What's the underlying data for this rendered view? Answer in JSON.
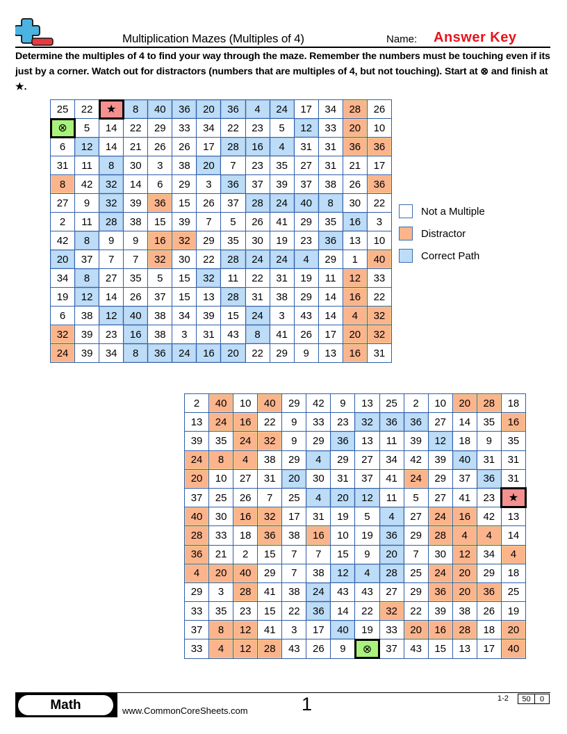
{
  "header": {
    "logo_icon": "plus-minus-logo-icon",
    "title": "Multiplication Mazes (Multiples of 4)",
    "name_label": "Name:",
    "name_value": "Answer Key"
  },
  "instructions": "Determine the multiples of 4 to find your way through the maze. Remember the numbers must be touching even if its just by a corner. Watch out for distractors (numbers that are multiples of 4, but not touching). Start at ⊗ and finish at ★.",
  "symbols": {
    "start": "⊗",
    "finish": "★"
  },
  "cell_codes": {
    "n": "Not a Multiple",
    "d": "Distractor",
    "p": "Correct Path",
    "s": "Start",
    "f": "Finish"
  },
  "colors": {
    "not_multiple": "#ffffff",
    "distractor": "#fbb48c",
    "correct_path": "#bcdcf7",
    "start": "#a9f27c",
    "finish": "#f49090",
    "grid_border": "#2e5ea8",
    "answer_key": "#e8121b"
  },
  "legend": [
    {
      "label": "Not a Multiple",
      "code": "n"
    },
    {
      "label": "Distractor",
      "code": "d"
    },
    {
      "label": "Correct Path",
      "code": "p"
    }
  ],
  "maze1": {
    "values": [
      [
        "25",
        "22",
        "★",
        "8",
        "40",
        "36",
        "20",
        "36",
        "4",
        "24",
        "17",
        "34",
        "28",
        "26"
      ],
      [
        "⊗",
        "5",
        "14",
        "22",
        "29",
        "33",
        "34",
        "22",
        "23",
        "5",
        "12",
        "33",
        "20",
        "10"
      ],
      [
        "6",
        "12",
        "14",
        "21",
        "26",
        "26",
        "17",
        "28",
        "16",
        "4",
        "31",
        "31",
        "36",
        "36"
      ],
      [
        "31",
        "11",
        "8",
        "30",
        "3",
        "38",
        "20",
        "7",
        "23",
        "35",
        "27",
        "31",
        "21",
        "17"
      ],
      [
        "8",
        "42",
        "32",
        "14",
        "6",
        "29",
        "3",
        "36",
        "37",
        "39",
        "37",
        "38",
        "26",
        "36"
      ],
      [
        "27",
        "9",
        "32",
        "39",
        "36",
        "15",
        "26",
        "37",
        "28",
        "24",
        "40",
        "8",
        "30",
        "22"
      ],
      [
        "2",
        "11",
        "28",
        "38",
        "15",
        "39",
        "7",
        "5",
        "26",
        "41",
        "29",
        "35",
        "16",
        "3"
      ],
      [
        "42",
        "8",
        "9",
        "9",
        "16",
        "32",
        "29",
        "35",
        "30",
        "19",
        "23",
        "36",
        "13",
        "10"
      ],
      [
        "20",
        "37",
        "7",
        "7",
        "32",
        "30",
        "22",
        "28",
        "24",
        "24",
        "4",
        "29",
        "1",
        "40"
      ],
      [
        "34",
        "8",
        "27",
        "35",
        "5",
        "15",
        "32",
        "11",
        "22",
        "31",
        "19",
        "11",
        "12",
        "33"
      ],
      [
        "19",
        "12",
        "14",
        "26",
        "37",
        "15",
        "13",
        "28",
        "31",
        "38",
        "29",
        "14",
        "16",
        "22"
      ],
      [
        "6",
        "38",
        "12",
        "40",
        "38",
        "34",
        "39",
        "15",
        "24",
        "3",
        "43",
        "14",
        "4",
        "32"
      ],
      [
        "32",
        "39",
        "23",
        "16",
        "38",
        "3",
        "31",
        "43",
        "8",
        "41",
        "26",
        "17",
        "20",
        "32"
      ],
      [
        "24",
        "39",
        "34",
        "8",
        "36",
        "24",
        "16",
        "20",
        "22",
        "29",
        "9",
        "13",
        "16",
        "31"
      ]
    ],
    "types": [
      [
        "n",
        "n",
        "f",
        "p",
        "p",
        "p",
        "p",
        "p",
        "p",
        "p",
        "n",
        "n",
        "d",
        "n"
      ],
      [
        "s",
        "n",
        "n",
        "n",
        "n",
        "n",
        "n",
        "n",
        "n",
        "n",
        "p",
        "n",
        "d",
        "n"
      ],
      [
        "n",
        "p",
        "n",
        "n",
        "n",
        "n",
        "n",
        "p",
        "p",
        "p",
        "n",
        "n",
        "d",
        "d"
      ],
      [
        "n",
        "n",
        "p",
        "n",
        "n",
        "n",
        "p",
        "n",
        "n",
        "n",
        "n",
        "n",
        "n",
        "n"
      ],
      [
        "d",
        "n",
        "p",
        "n",
        "n",
        "n",
        "n",
        "p",
        "n",
        "n",
        "n",
        "n",
        "n",
        "d"
      ],
      [
        "n",
        "n",
        "p",
        "n",
        "d",
        "n",
        "n",
        "n",
        "p",
        "p",
        "p",
        "p",
        "n",
        "n"
      ],
      [
        "n",
        "n",
        "p",
        "n",
        "n",
        "n",
        "n",
        "n",
        "n",
        "n",
        "n",
        "n",
        "p",
        "n"
      ],
      [
        "n",
        "p",
        "n",
        "n",
        "d",
        "d",
        "n",
        "n",
        "n",
        "n",
        "n",
        "p",
        "n",
        "n"
      ],
      [
        "p",
        "n",
        "n",
        "n",
        "d",
        "n",
        "n",
        "p",
        "p",
        "p",
        "p",
        "n",
        "n",
        "d"
      ],
      [
        "n",
        "p",
        "n",
        "n",
        "n",
        "n",
        "p",
        "n",
        "n",
        "n",
        "n",
        "n",
        "d",
        "n"
      ],
      [
        "n",
        "p",
        "n",
        "n",
        "n",
        "n",
        "n",
        "p",
        "n",
        "n",
        "n",
        "n",
        "d",
        "n"
      ],
      [
        "n",
        "n",
        "p",
        "p",
        "n",
        "n",
        "n",
        "n",
        "p",
        "n",
        "n",
        "n",
        "d",
        "d"
      ],
      [
        "d",
        "n",
        "n",
        "p",
        "n",
        "n",
        "n",
        "n",
        "p",
        "n",
        "n",
        "n",
        "d",
        "d"
      ],
      [
        "d",
        "n",
        "n",
        "p",
        "p",
        "p",
        "p",
        "p",
        "n",
        "n",
        "n",
        "n",
        "d",
        "n"
      ]
    ]
  },
  "maze2": {
    "values": [
      [
        "2",
        "40",
        "10",
        "40",
        "29",
        "42",
        "9",
        "13",
        "25",
        "2",
        "10",
        "20",
        "28",
        "18"
      ],
      [
        "13",
        "24",
        "16",
        "22",
        "9",
        "33",
        "23",
        "32",
        "36",
        "36",
        "27",
        "14",
        "35",
        "16"
      ],
      [
        "39",
        "35",
        "24",
        "32",
        "9",
        "29",
        "36",
        "13",
        "11",
        "39",
        "12",
        "18",
        "9",
        "35"
      ],
      [
        "24",
        "8",
        "4",
        "38",
        "29",
        "4",
        "29",
        "27",
        "34",
        "42",
        "39",
        "40",
        "31",
        "31"
      ],
      [
        "20",
        "10",
        "27",
        "31",
        "20",
        "30",
        "31",
        "37",
        "41",
        "24",
        "29",
        "37",
        "36",
        "31"
      ],
      [
        "37",
        "25",
        "26",
        "7",
        "25",
        "4",
        "20",
        "12",
        "11",
        "5",
        "27",
        "41",
        "23",
        "★"
      ],
      [
        "40",
        "30",
        "16",
        "32",
        "17",
        "31",
        "19",
        "5",
        "4",
        "27",
        "24",
        "16",
        "42",
        "13"
      ],
      [
        "28",
        "33",
        "18",
        "36",
        "38",
        "16",
        "10",
        "19",
        "36",
        "29",
        "28",
        "4",
        "4",
        "14"
      ],
      [
        "36",
        "21",
        "2",
        "15",
        "7",
        "7",
        "15",
        "9",
        "20",
        "7",
        "30",
        "12",
        "34",
        "4"
      ],
      [
        "4",
        "20",
        "40",
        "29",
        "7",
        "38",
        "12",
        "4",
        "28",
        "25",
        "24",
        "20",
        "29",
        "18"
      ],
      [
        "29",
        "3",
        "28",
        "41",
        "38",
        "24",
        "43",
        "43",
        "27",
        "29",
        "36",
        "20",
        "36",
        "25"
      ],
      [
        "33",
        "35",
        "23",
        "15",
        "22",
        "36",
        "14",
        "22",
        "32",
        "22",
        "39",
        "38",
        "26",
        "19"
      ],
      [
        "37",
        "8",
        "12",
        "41",
        "3",
        "17",
        "40",
        "19",
        "33",
        "20",
        "16",
        "28",
        "18",
        "20"
      ],
      [
        "33",
        "4",
        "12",
        "28",
        "43",
        "26",
        "9",
        "⊗",
        "37",
        "43",
        "15",
        "13",
        "17",
        "40"
      ]
    ],
    "types": [
      [
        "n",
        "d",
        "n",
        "d",
        "n",
        "n",
        "n",
        "n",
        "n",
        "n",
        "n",
        "d",
        "d",
        "n"
      ],
      [
        "n",
        "d",
        "d",
        "n",
        "n",
        "n",
        "n",
        "p",
        "p",
        "p",
        "n",
        "n",
        "n",
        "d"
      ],
      [
        "n",
        "n",
        "d",
        "d",
        "n",
        "n",
        "p",
        "n",
        "n",
        "n",
        "p",
        "n",
        "n",
        "n"
      ],
      [
        "d",
        "d",
        "d",
        "n",
        "n",
        "p",
        "n",
        "n",
        "n",
        "n",
        "n",
        "p",
        "n",
        "n"
      ],
      [
        "d",
        "n",
        "n",
        "n",
        "p",
        "n",
        "n",
        "n",
        "n",
        "d",
        "n",
        "n",
        "p",
        "n"
      ],
      [
        "n",
        "n",
        "n",
        "n",
        "n",
        "p",
        "p",
        "p",
        "n",
        "n",
        "n",
        "n",
        "n",
        "f"
      ],
      [
        "d",
        "n",
        "d",
        "d",
        "n",
        "n",
        "n",
        "n",
        "p",
        "n",
        "d",
        "d",
        "n",
        "n"
      ],
      [
        "d",
        "n",
        "n",
        "d",
        "n",
        "d",
        "n",
        "n",
        "p",
        "n",
        "d",
        "d",
        "d",
        "n"
      ],
      [
        "d",
        "n",
        "n",
        "n",
        "n",
        "n",
        "n",
        "n",
        "p",
        "n",
        "n",
        "d",
        "n",
        "d"
      ],
      [
        "d",
        "d",
        "d",
        "n",
        "n",
        "n",
        "p",
        "p",
        "p",
        "n",
        "d",
        "d",
        "n",
        "n"
      ],
      [
        "n",
        "n",
        "d",
        "n",
        "n",
        "p",
        "n",
        "n",
        "n",
        "n",
        "d",
        "d",
        "d",
        "n"
      ],
      [
        "n",
        "n",
        "n",
        "n",
        "n",
        "p",
        "n",
        "n",
        "d",
        "n",
        "n",
        "n",
        "n",
        "n"
      ],
      [
        "n",
        "d",
        "d",
        "n",
        "n",
        "n",
        "p",
        "n",
        "n",
        "d",
        "d",
        "d",
        "n",
        "d"
      ],
      [
        "n",
        "d",
        "d",
        "d",
        "n",
        "n",
        "n",
        "s",
        "n",
        "n",
        "n",
        "n",
        "n",
        "d"
      ]
    ]
  },
  "footer": {
    "subject": "Math",
    "website": "www.CommonCoreSheets.com",
    "page_number": "1",
    "grade": "1-2",
    "score_total": "50",
    "score_value": "0"
  }
}
